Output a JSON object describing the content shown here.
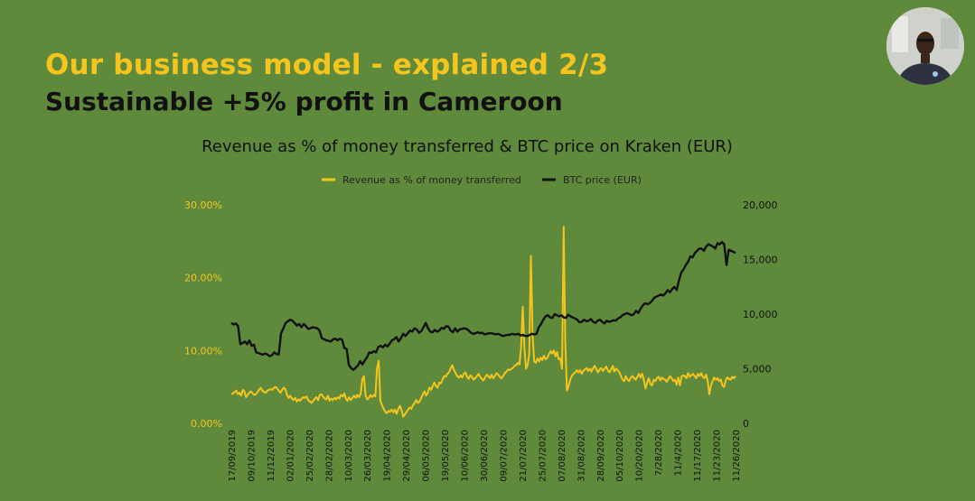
{
  "slide": {
    "title": "Our business model - explained 2/3",
    "subtitle": "Sustainable +5% profit in Cameroon"
  },
  "colors": {
    "background": "#5f8a3c",
    "title": "#f5c51e",
    "revenue_series": "#f5c51e",
    "btc_series": "#111111"
  },
  "webcam": {
    "icon": "presenter-webcam-icon"
  },
  "chart_data": {
    "type": "line",
    "title": "Revenue as % of money transferred & BTC price on Kraken (EUR)",
    "legend_position": "top-center",
    "grid": false,
    "x_tick_labels": [
      "17/09/2019",
      "09/10/2019",
      "11/12/2019",
      "02/01/2020",
      "25/02/2020",
      "28/02/2020",
      "10/03/2020",
      "26/03/2020",
      "19/04/2020",
      "29/04/2020",
      "06/05/2020",
      "19/05/2020",
      "10/06/2020",
      "30/06/2020",
      "09/07/2020",
      "21/07/2020",
      "25/07/2020",
      "07/08/2020",
      "31/08/2020",
      "28/09/2020",
      "05/10/2020",
      "10/20/2020",
      "7/28/2020",
      "11/4/2020",
      "11/17/2020",
      "11/23/2020",
      "11/26/2020"
    ],
    "y_left": {
      "ticks": [
        "0.00%",
        "10.00%",
        "20.00%",
        "30.00%"
      ],
      "range": [
        0,
        30
      ]
    },
    "y_right": {
      "ticks": [
        "0",
        "5,000",
        "10,000",
        "15,000",
        "20,000"
      ],
      "range": [
        0,
        20000
      ]
    },
    "series": [
      {
        "name": "Revenue as % of money transferred",
        "axis": "left",
        "values": [
          4.0,
          4.1,
          4.3,
          4.5,
          4.0,
          4.2,
          3.8,
          4.6,
          4.4,
          3.6,
          3.9,
          4.2,
          4.4,
          4.1,
          3.9,
          4.0,
          4.3,
          4.6,
          4.9,
          4.5,
          4.3,
          4.2,
          4.5,
          4.6,
          4.7,
          4.6,
          4.9,
          5.0,
          4.8,
          4.5,
          4.2,
          4.6,
          4.9,
          4.7,
          3.9,
          3.5,
          3.8,
          3.4,
          3.2,
          3.5,
          3.0,
          3.3,
          3.1,
          3.4,
          3.6,
          3.5,
          3.7,
          3.2,
          3.0,
          2.8,
          3.1,
          3.4,
          3.6,
          3.2,
          3.9,
          4.0,
          3.7,
          3.4,
          3.3,
          3.8,
          3.1,
          3.4,
          3.2,
          3.5,
          3.3,
          3.6,
          3.4,
          3.9,
          3.7,
          4.1,
          3.4,
          3.1,
          3.6,
          3.2,
          3.5,
          3.8,
          3.5,
          3.9,
          3.6,
          4.0,
          6.0,
          6.5,
          3.8,
          3.3,
          3.5,
          3.9,
          3.6,
          3.9,
          3.7,
          7.5,
          8.6,
          3.1,
          2.5,
          2.0,
          1.6,
          1.4,
          1.7,
          1.6,
          1.9,
          1.5,
          1.9,
          1.3,
          2.0,
          2.4,
          1.8,
          0.9,
          1.2,
          1.6,
          1.9,
          2.2,
          2.0,
          2.5,
          2.8,
          3.2,
          2.8,
          3.0,
          3.5,
          4.0,
          4.4,
          3.8,
          4.2,
          4.9,
          4.6,
          5.1,
          5.6,
          5.1,
          4.9,
          5.6,
          5.5,
          6.0,
          6.5,
          6.4,
          6.8,
          7.0,
          7.6,
          8.0,
          7.3,
          6.9,
          6.5,
          6.3,
          6.6,
          6.3,
          6.8,
          7.0,
          6.4,
          6.1,
          6.6,
          6.4,
          6.0,
          6.2,
          6.5,
          6.8,
          6.4,
          6.1,
          5.9,
          6.3,
          6.7,
          6.5,
          6.2,
          6.7,
          6.2,
          6.5,
          6.9,
          6.7,
          6.4,
          6.2,
          6.5,
          6.9,
          7.1,
          7.4,
          7.3,
          7.5,
          7.6,
          7.9,
          8.0,
          8.3,
          8.1,
          10.5,
          16.0,
          10.5,
          7.5,
          8.0,
          9.5,
          23.0,
          12.0,
          8.5,
          8.3,
          8.9,
          8.5,
          9.0,
          8.7,
          9.3,
          8.8,
          9.0,
          9.5,
          9.9,
          9.6,
          10.0,
          9.2,
          9.8,
          8.8,
          8.9,
          7.5,
          27.0,
          11.0,
          4.5,
          5.1,
          6.0,
          6.5,
          6.8,
          7.0,
          7.3,
          7.0,
          7.3,
          6.8,
          7.2,
          7.4,
          7.6,
          7.2,
          7.5,
          7.1,
          7.6,
          7.9,
          7.4,
          7.0,
          7.4,
          7.6,
          7.2,
          7.5,
          7.8,
          7.3,
          7.0,
          7.4,
          7.9,
          7.1,
          7.5,
          7.3,
          7.0,
          6.5,
          6.0,
          5.8,
          6.5,
          6.0,
          5.8,
          6.3,
          6.5,
          6.2,
          6.0,
          6.4,
          6.8,
          6.3,
          6.8,
          6.0,
          4.8,
          5.6,
          6.2,
          5.4,
          5.2,
          6.0,
          5.8,
          6.2,
          6.4,
          5.9,
          6.3,
          6.1,
          6.0,
          5.7,
          6.1,
          6.5,
          6.2,
          5.8,
          6.0,
          5.3,
          6.3,
          5.2,
          6.4,
          6.6,
          6.5,
          6.2,
          6.9,
          6.4,
          6.6,
          6.8,
          6.5,
          6.2,
          6.8,
          6.5,
          6.9,
          6.4,
          6.2,
          6.7,
          5.8,
          4.0,
          5.2,
          5.8,
          6.3,
          6.0,
          6.2,
          5.8,
          6.0,
          5.2,
          5.0,
          5.9,
          6.3,
          6.1,
          6.0,
          6.4,
          6.2,
          6.5
        ]
      },
      {
        "name": "BTC price (EUR)",
        "axis": "right",
        "values": [
          9200,
          9050,
          9150,
          8900,
          7250,
          7350,
          7500,
          7250,
          7600,
          7100,
          7200,
          6500,
          6450,
          6350,
          6300,
          6400,
          6300,
          6150,
          6250,
          6500,
          6350,
          6300,
          8250,
          8700,
          9200,
          9350,
          9500,
          9400,
          9200,
          8950,
          9100,
          8800,
          9100,
          8900,
          8650,
          8700,
          8800,
          8750,
          8700,
          8500,
          7800,
          7700,
          7600,
          7550,
          7500,
          7700,
          7750,
          7600,
          7750,
          7650,
          6900,
          6800,
          5350,
          5050,
          4900,
          5100,
          5300,
          5700,
          5400,
          5750,
          6050,
          6500,
          6450,
          6600,
          6500,
          7000,
          7100,
          6950,
          7200,
          7050,
          7300,
          7600,
          7700,
          7900,
          7500,
          7800,
          8200,
          8000,
          8250,
          8500,
          8400,
          8700,
          8600,
          8300,
          8450,
          8800,
          9200,
          8700,
          8400,
          8350,
          8550,
          8400,
          8500,
          8750,
          8650,
          8900,
          8850,
          8500,
          8350,
          8700,
          8400,
          8600,
          8650,
          8700,
          8650,
          8500,
          8300,
          8200,
          8250,
          8350,
          8250,
          8300,
          8150,
          8200,
          8250,
          8250,
          8200,
          8150,
          8200,
          8100,
          8000,
          8050,
          8100,
          8100,
          8200,
          8150,
          8150,
          8200,
          8050,
          8100,
          8000,
          8000,
          8100,
          8200,
          8150,
          8200,
          8800,
          9100,
          9500,
          9800,
          9900,
          9700,
          9650,
          10000,
          9900,
          9800,
          9900,
          9700,
          9650,
          9950,
          9800,
          9700,
          9600,
          9500,
          9250,
          9300,
          9500,
          9350,
          9400,
          9550,
          9300,
          9200,
          9400,
          9500,
          9300,
          9150,
          9400,
          9300,
          9350,
          9450,
          9400,
          9600,
          9700,
          9900,
          10000,
          10100,
          10000,
          9900,
          10000,
          10300,
          10100,
          10500,
          10800,
          11000,
          10900,
          11000,
          11200,
          11500,
          11600,
          11700,
          11800,
          11700,
          11900,
          12200,
          12000,
          12300,
          12500,
          12200,
          13100,
          13800,
          14100,
          14500,
          14800,
          15300,
          15200,
          15600,
          15800,
          16000,
          16000,
          15800,
          16200,
          16400,
          16300,
          16200,
          16000,
          16500,
          16400,
          16600,
          16400,
          14500,
          15900,
          15800,
          15700,
          15600
        ]
      }
    ]
  }
}
